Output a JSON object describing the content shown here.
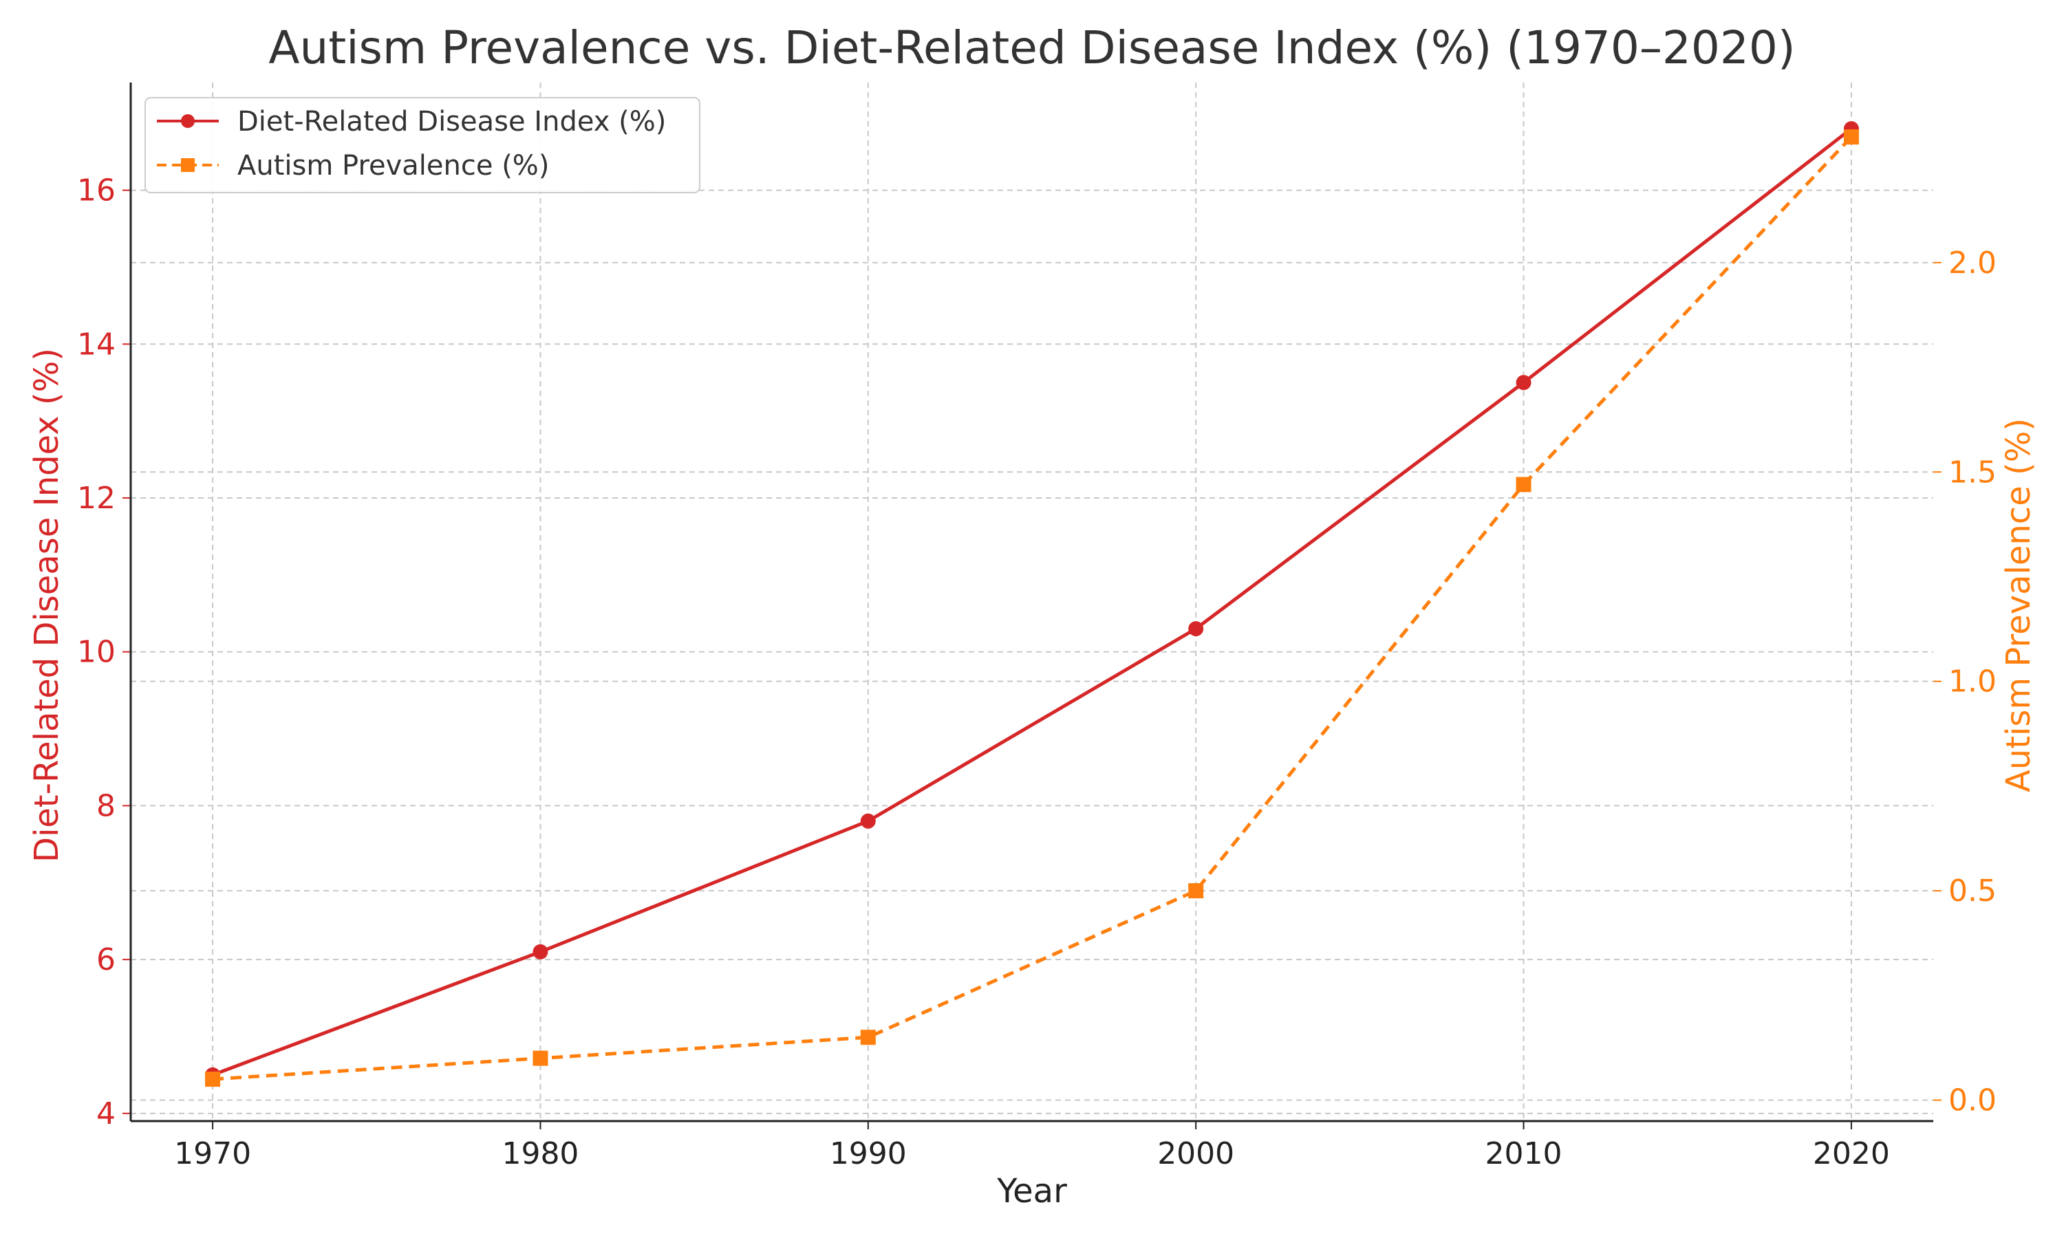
{
  "chart_data": {
    "type": "line",
    "title": "Autism Prevalence vs. Diet-Related Disease Index (%) (1970–2020)",
    "xlabel": "Year",
    "ylabel_left": "Diet-Related Disease Index (%)",
    "ylabel_right": "Autism Prevalence (%)",
    "x": [
      1970,
      1980,
      1990,
      2000,
      2010,
      2020
    ],
    "x_ticks": [
      "1970",
      "1980",
      "1990",
      "2000",
      "2010",
      "2020"
    ],
    "xlim": [
      1967.5,
      2022.5
    ],
    "ylim_left": [
      3.9,
      17.4
    ],
    "ylim_right": [
      -0.05,
      2.43
    ],
    "left_ticks": [
      "4",
      "6",
      "8",
      "10",
      "12",
      "14",
      "16"
    ],
    "right_ticks": [
      "0.0",
      "0.5",
      "1.0",
      "1.5",
      "2.0"
    ],
    "grid": true,
    "legend_position": "top-left",
    "series": [
      {
        "name": "Diet-Related Disease Index (%)",
        "axis": "left",
        "values": [
          4.5,
          6.1,
          7.8,
          10.3,
          13.5,
          16.8
        ],
        "color": "#d62728",
        "marker": "circle",
        "line_style": "solid"
      },
      {
        "name": "Autism Prevalence (%)",
        "axis": "right",
        "values": [
          0.05,
          0.1,
          0.15,
          0.5,
          1.47,
          2.3
        ],
        "color": "#ff7f0e",
        "marker": "square",
        "line_style": "dashed"
      }
    ]
  }
}
